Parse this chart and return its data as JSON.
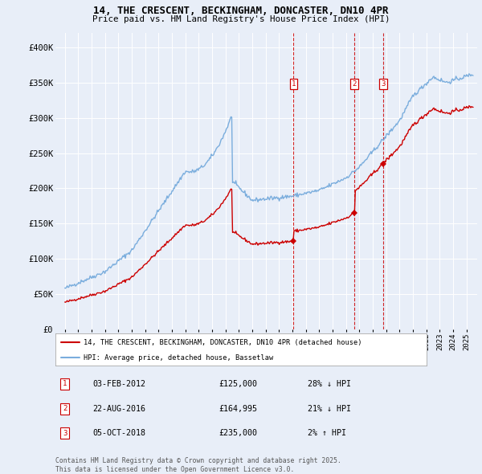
{
  "title": "14, THE CRESCENT, BECKINGHAM, DONCASTER, DN10 4PR",
  "subtitle": "Price paid vs. HM Land Registry's House Price Index (HPI)",
  "background_color": "#e8eef8",
  "ylabel": "",
  "ylim": [
    0,
    420000
  ],
  "yticks": [
    0,
    50000,
    100000,
    150000,
    200000,
    250000,
    300000,
    350000,
    400000
  ],
  "ytick_labels": [
    "£0",
    "£50K",
    "£100K",
    "£150K",
    "£200K",
    "£250K",
    "£300K",
    "£350K",
    "£400K"
  ],
  "sale_year_floats": [
    2012.088,
    2016.638,
    2018.755
  ],
  "sale_prices": [
    125000,
    164995,
    235000
  ],
  "sale_labels": [
    "1",
    "2",
    "3"
  ],
  "sale_label_info": [
    {
      "num": "1",
      "date": "03-FEB-2012",
      "price": "£125,000",
      "hpi": "28% ↓ HPI"
    },
    {
      "num": "2",
      "date": "22-AUG-2016",
      "price": "£164,995",
      "hpi": "21% ↓ HPI"
    },
    {
      "num": "3",
      "date": "05-OCT-2018",
      "price": "£235,000",
      "hpi": "2% ↑ HPI"
    }
  ],
  "line_color_price": "#cc0000",
  "line_color_hpi": "#7aaddd",
  "marker_color": "#cc0000",
  "dashed_line_color": "#cc0000",
  "legend_label_price": "14, THE CRESCENT, BECKINGHAM, DONCASTER, DN10 4PR (detached house)",
  "legend_label_hpi": "HPI: Average price, detached house, Bassetlaw",
  "copyright_text": "Contains HM Land Registry data © Crown copyright and database right 2025.\nThis data is licensed under the Open Government Licence v3.0."
}
